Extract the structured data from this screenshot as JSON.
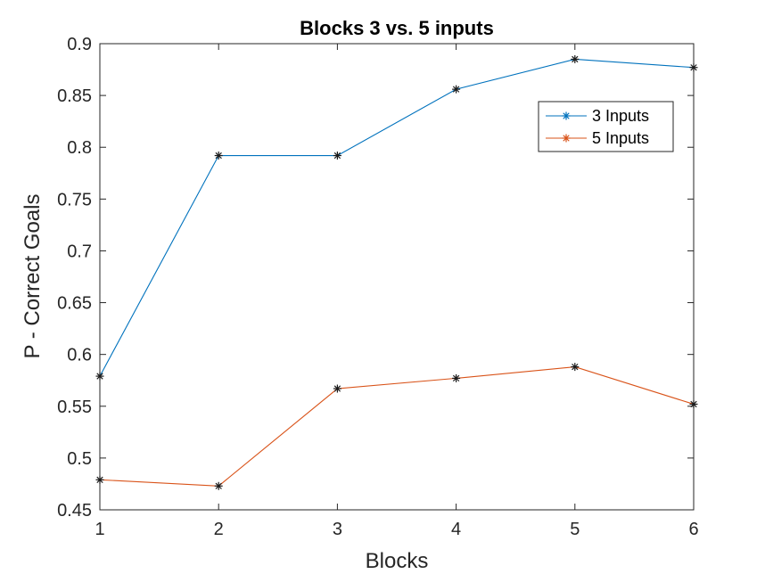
{
  "chart_data": {
    "type": "line",
    "title": "Blocks 3 vs. 5 inputs",
    "xlabel": "Blocks",
    "ylabel": "P - Correct Goals",
    "x": [
      1,
      2,
      3,
      4,
      5,
      6
    ],
    "xlim": [
      1,
      6
    ],
    "ylim": [
      0.45,
      0.9
    ],
    "xticks": [
      "1",
      "2",
      "3",
      "4",
      "5",
      "6"
    ],
    "yticks": [
      "0.45",
      "0.5",
      "0.55",
      "0.6",
      "0.65",
      "0.7",
      "0.75",
      "0.8",
      "0.85",
      "0.9"
    ],
    "grid": false,
    "legend_position": "top-right",
    "series": [
      {
        "name": "3 Inputs",
        "color": "#0072BD",
        "marker": "asterisk",
        "values": [
          0.579,
          0.792,
          0.792,
          0.856,
          0.885,
          0.877
        ]
      },
      {
        "name": "5 Inputs",
        "color": "#D95319",
        "marker": "asterisk",
        "values": [
          0.479,
          0.473,
          0.567,
          0.577,
          0.588,
          0.552
        ]
      }
    ]
  }
}
